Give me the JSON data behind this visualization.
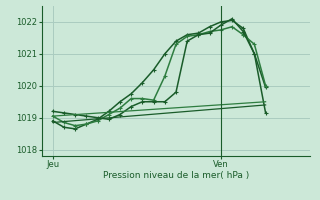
{
  "background_color": "#cce8d8",
  "grid_color": "#aaccc0",
  "line_color_dark": "#1a5c2a",
  "title": "Pression niveau de la mer( hPa )",
  "xlabel_jeu": "Jeu",
  "xlabel_ven": "Ven",
  "ylim": [
    1017.8,
    1022.5
  ],
  "yticks": [
    1018,
    1019,
    1020,
    1021,
    1022
  ],
  "xlim": [
    0,
    24
  ],
  "ven_x": 16,
  "jeu_x": 1,
  "series": [
    {
      "x": [
        1,
        2,
        3,
        4,
        5,
        6,
        7,
        8,
        9,
        10,
        11,
        12,
        13,
        14,
        15,
        16,
        17,
        18,
        19,
        20
      ],
      "y": [
        1018.9,
        1018.7,
        1018.65,
        1018.8,
        1018.95,
        1019.2,
        1019.5,
        1019.75,
        1020.1,
        1020.5,
        1021.0,
        1021.4,
        1021.6,
        1021.65,
        1021.85,
        1022.0,
        1022.05,
        1021.8,
        1021.0,
        1019.95
      ],
      "marker": "+",
      "lw": 1.1,
      "color": "#1a5c2a",
      "ms": 3.0
    },
    {
      "x": [
        1,
        2,
        3,
        4,
        5,
        6,
        7,
        8,
        9,
        10,
        11,
        12,
        13,
        14,
        15,
        16,
        17,
        18,
        19,
        20
      ],
      "y": [
        1019.05,
        1018.85,
        1018.75,
        1018.8,
        1018.9,
        1019.1,
        1019.3,
        1019.6,
        1019.6,
        1019.55,
        1020.3,
        1021.3,
        1021.55,
        1021.6,
        1021.7,
        1021.75,
        1021.85,
        1021.6,
        1021.3,
        1020.0
      ],
      "marker": "+",
      "lw": 1.1,
      "color": "#2e7d40",
      "ms": 3.0
    },
    {
      "x": [
        1,
        2,
        3,
        4,
        5,
        6,
        7,
        8,
        9,
        10,
        11,
        12,
        13,
        14,
        15,
        16,
        17,
        18,
        19,
        20
      ],
      "y": [
        1019.2,
        1019.15,
        1019.1,
        1019.05,
        1019.0,
        1018.95,
        1019.1,
        1019.35,
        1019.5,
        1019.5,
        1019.5,
        1019.8,
        1021.4,
        1021.6,
        1021.65,
        1021.9,
        1022.1,
        1021.7,
        1021.0,
        1019.15
      ],
      "marker": "+",
      "lw": 1.1,
      "color": "#1a5c2a",
      "ms": 3.0
    },
    {
      "x": [
        1,
        20
      ],
      "y": [
        1019.05,
        1019.5
      ],
      "marker": null,
      "lw": 0.9,
      "color": "#2e7d40",
      "ms": 0
    },
    {
      "x": [
        1,
        20
      ],
      "y": [
        1018.85,
        1019.4
      ],
      "marker": null,
      "lw": 0.9,
      "color": "#1a5c2a",
      "ms": 0
    }
  ]
}
